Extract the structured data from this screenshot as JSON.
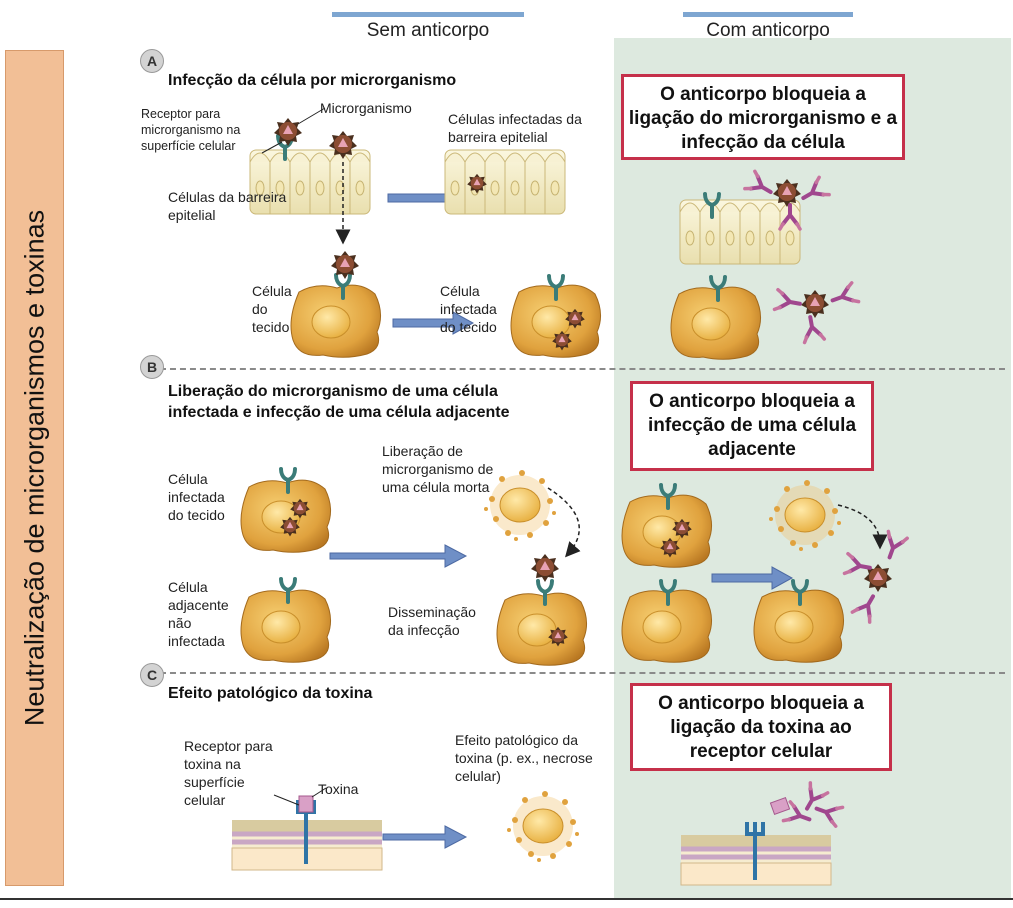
{
  "sidebar": {
    "title": "Neutralização de microrganismos e toxinas"
  },
  "columns": {
    "without": "Sem anticorpo",
    "with": "Com anticorpo"
  },
  "section_a": {
    "letter": "A",
    "title": "Infecção da célula por microrganismo",
    "receptor_label": "Receptor para microrganismo na superfície celular",
    "microorganism_label": "Microrganismo",
    "infected_barrier_label": "Células infectadas da barreira epitelial",
    "epithelial_label": "Células da barreira epitelial",
    "tissue_cell_label": "Célula do tecido",
    "infected_tissue_label": "Célula infectada do tecido",
    "antibody_box": "O anticorpo bloqueia a ligação do microrganismo e a infecção da célula"
  },
  "section_b": {
    "letter": "B",
    "title": "Liberação do microrganismo de uma célula infectada e infecção de uma célula adjacente",
    "infected_label": "Célula infectada do tecido",
    "release_label": "Liberação de microrganismo de uma célula morta",
    "adjacent_label": "Célula adjacente não infectada",
    "spread_label": "Disseminação da infecção",
    "antibody_box": "O anticorpo bloqueia a infecção de uma célula adjacente"
  },
  "section_c": {
    "letter": "C",
    "title": "Efeito patológico da toxina",
    "receptor_label": "Receptor para toxina na superfície celular",
    "toxin_label": "Toxina",
    "effect_label": "Efeito patológico da toxina (p. ex., necrose celular)",
    "antibody_box": "O anticorpo bloqueia a ligação da toxina ao receptor celular"
  },
  "colors": {
    "sidebar": "#f2bf96",
    "panel": "#dde9df",
    "box_border": "#c5304a",
    "arrow": "#6f8fc6",
    "cell": "#e0a23e",
    "antibody": "#a0478e"
  }
}
